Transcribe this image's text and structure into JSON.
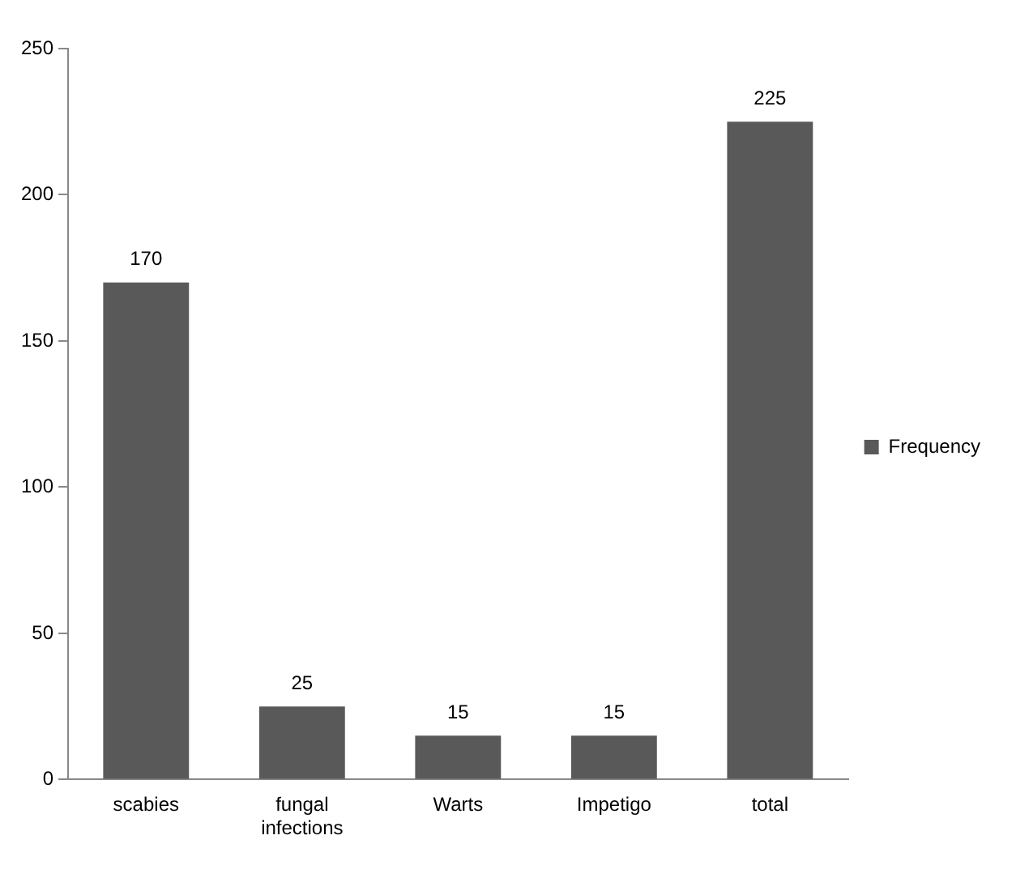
{
  "chart_data": {
    "type": "bar",
    "categories": [
      "scabies",
      "fungal infections",
      "Warts",
      "Impetigo",
      "total"
    ],
    "series": [
      {
        "name": "Frequency",
        "color": "#595959",
        "values": [
          170,
          25,
          15,
          15,
          225
        ]
      }
    ],
    "ylim": [
      0,
      250
    ],
    "yticks": [
      0,
      50,
      100,
      150,
      200,
      250
    ],
    "grid": false,
    "legend": "right",
    "data_labels": true
  }
}
